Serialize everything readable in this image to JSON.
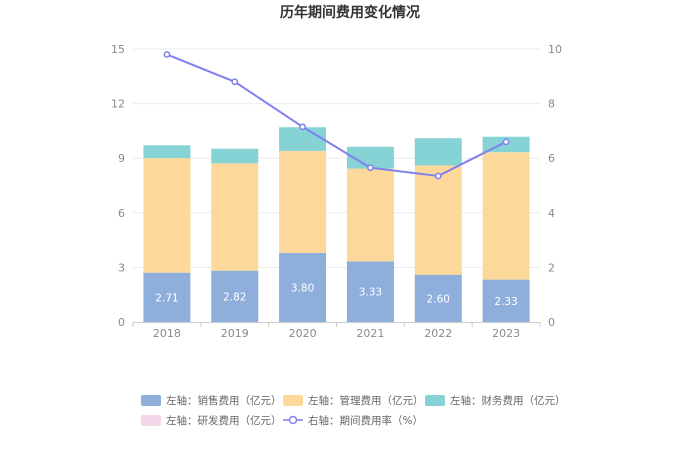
{
  "chart_data": {
    "type": "bar",
    "stacked": true,
    "title": "历年期间费用变化情况",
    "categories": [
      "2018",
      "2019",
      "2020",
      "2021",
      "2022",
      "2023"
    ],
    "y_left": {
      "min": 0,
      "max": 15,
      "ticks": [
        0,
        3,
        6,
        9,
        12,
        15
      ]
    },
    "y_right": {
      "min": 0,
      "max": 10,
      "ticks": [
        0,
        2,
        4,
        6,
        8,
        10
      ]
    },
    "grid": true,
    "legend_position": "bottom",
    "series": [
      {
        "name": "左轴：销售费用（亿元）",
        "axis": "left",
        "type": "bar",
        "color": "#8eaedb",
        "values": [
          2.71,
          2.82,
          3.8,
          3.33,
          2.6,
          2.33
        ],
        "labels": [
          "2.71",
          "2.82",
          "3.80",
          "3.33",
          "2.60",
          "2.33"
        ]
      },
      {
        "name": "左轴：管理费用（亿元）",
        "axis": "left",
        "type": "bar",
        "color": "#fcd99a",
        "values": [
          6.3,
          5.9,
          5.6,
          5.1,
          6.0,
          7.0
        ]
      },
      {
        "name": "左轴：财务费用（亿元）",
        "axis": "left",
        "type": "bar",
        "color": "#86d3d6",
        "values": [
          0.7,
          0.8,
          1.3,
          1.2,
          1.5,
          0.85
        ]
      },
      {
        "name": "左轴：研发费用（亿元）",
        "axis": "left",
        "type": "bar",
        "color": "#f2d7e8",
        "values": [
          0,
          0,
          0,
          0,
          0,
          0
        ]
      },
      {
        "name": "右轴：期间费用率（%）",
        "axis": "right",
        "type": "line",
        "color": "#8080ee",
        "values": [
          9.8,
          8.8,
          7.15,
          5.65,
          5.35,
          6.6
        ]
      }
    ]
  }
}
